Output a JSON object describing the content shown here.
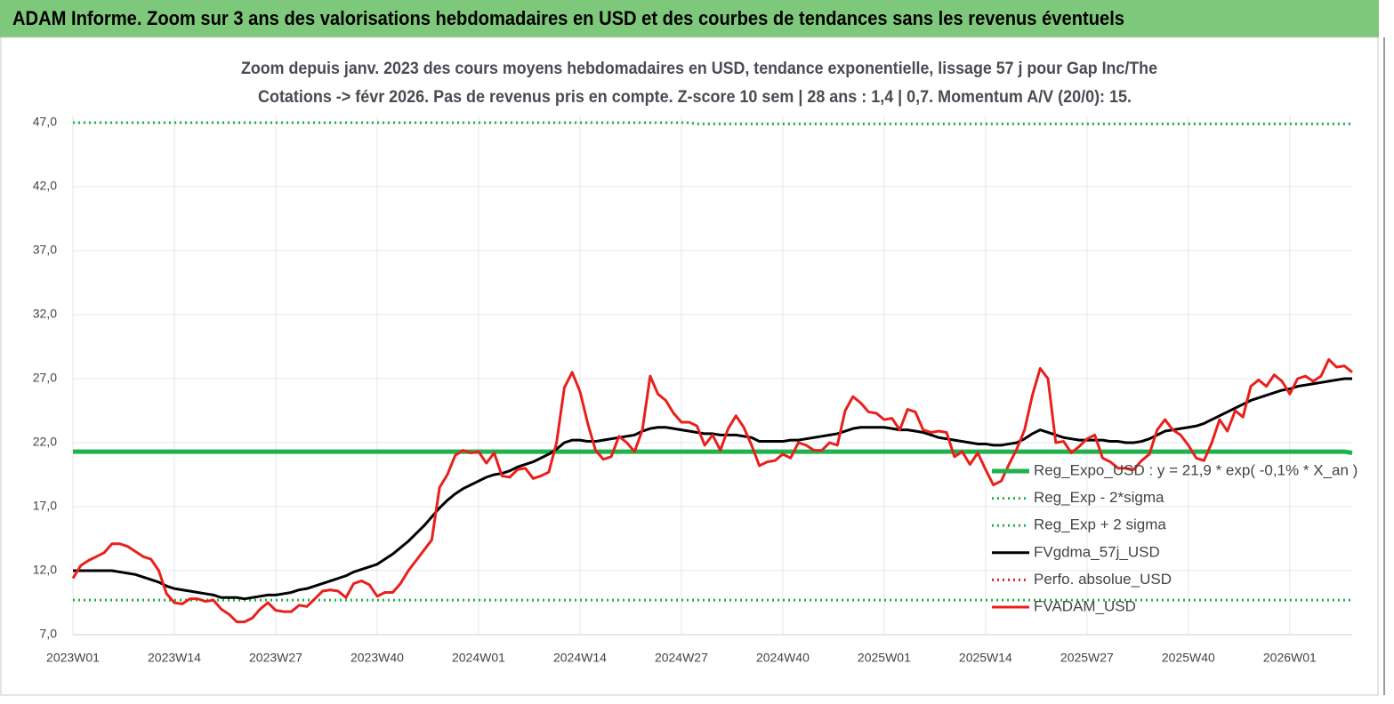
{
  "header": {
    "title": "ADAM Informe. Zoom sur 3 ans des valorisations hebdomadaires en USD et des courbes de tendances sans les revenus éventuels"
  },
  "chart_data": {
    "type": "line",
    "title": "Zoom depuis janv. 2023 des cours moyens hebdomadaires en USD, tendance exponentielle, lissage 57 j pour Gap Inc/The",
    "subtitle": "Cotations -> févr 2026.  Pas de revenus pris en compte. Z-score 10 sem  | 28 ans : 1,4  | 0,7. Momentum A/V (20/0): 15.",
    "categories": [
      "2023W01",
      null,
      null,
      null,
      null,
      null,
      null,
      null,
      null,
      null,
      null,
      null,
      null,
      "2023W14",
      null,
      null,
      null,
      null,
      null,
      null,
      null,
      null,
      null,
      null,
      null,
      null,
      "2023W27",
      null,
      null,
      null,
      null,
      null,
      null,
      null,
      null,
      null,
      null,
      null,
      null,
      "2023W40",
      null,
      null,
      null,
      null,
      null,
      null,
      null,
      null,
      null,
      null,
      null,
      null,
      "2024W01",
      null,
      null,
      null,
      null,
      null,
      null,
      null,
      null,
      null,
      null,
      null,
      null,
      "2024W14",
      null,
      null,
      null,
      null,
      null,
      null,
      null,
      null,
      null,
      null,
      null,
      null,
      "2024W27",
      null,
      null,
      null,
      null,
      null,
      null,
      null,
      null,
      null,
      null,
      null,
      null,
      "2024W40",
      null,
      null,
      null,
      null,
      null,
      null,
      null,
      null,
      null,
      null,
      null,
      null,
      "2025W01",
      null,
      null,
      null,
      null,
      null,
      null,
      null,
      null,
      null,
      null,
      null,
      null,
      "2025W14",
      null,
      null,
      null,
      null,
      null,
      null,
      null,
      null,
      null,
      null,
      null,
      null,
      "2025W27",
      null,
      null,
      null,
      null,
      null,
      null,
      null,
      null,
      null,
      null,
      null,
      null,
      "2025W40",
      null,
      null,
      null,
      null,
      null,
      null,
      null,
      null,
      null,
      null,
      null,
      null,
      "2026W01",
      null,
      null,
      null,
      null,
      null,
      null,
      null,
      null
    ],
    "series": [
      {
        "name": "Reg_Expo_USD : y = 21,9 * exp( -0,1% *  X_an )",
        "color": "#1fb14b",
        "style": "solid",
        "values": [
          21.3,
          21.3,
          21.3,
          21.3,
          21.3,
          21.3,
          21.3,
          21.3,
          21.3,
          21.3,
          21.3,
          21.3,
          21.3,
          21.3,
          21.3,
          21.3,
          21.3,
          21.3,
          21.3,
          21.3,
          21.3,
          21.3,
          21.3,
          21.3,
          21.3,
          21.3,
          21.3,
          21.3,
          21.3,
          21.3,
          21.3,
          21.3,
          21.3,
          21.3,
          21.3,
          21.3,
          21.3,
          21.3,
          21.3,
          21.3,
          21.3,
          21.3,
          21.3,
          21.3,
          21.3,
          21.3,
          21.3,
          21.3,
          21.3,
          21.3,
          21.3,
          21.3,
          21.3,
          21.3,
          21.3,
          21.3,
          21.3,
          21.3,
          21.3,
          21.3,
          21.3,
          21.3,
          21.3,
          21.3,
          21.3,
          21.3,
          21.3,
          21.3,
          21.3,
          21.3,
          21.3,
          21.3,
          21.3,
          21.3,
          21.3,
          21.3,
          21.3,
          21.3,
          21.3,
          21.3,
          21.3,
          21.3,
          21.3,
          21.3,
          21.3,
          21.3,
          21.3,
          21.3,
          21.3,
          21.3,
          21.3,
          21.3,
          21.3,
          21.3,
          21.3,
          21.3,
          21.3,
          21.3,
          21.3,
          21.3,
          21.3,
          21.3,
          21.3,
          21.3,
          21.3,
          21.3,
          21.3,
          21.3,
          21.3,
          21.3,
          21.3,
          21.3,
          21.3,
          21.3,
          21.3,
          21.3,
          21.3,
          21.3,
          21.3,
          21.3,
          21.3,
          21.3,
          21.3,
          21.3,
          21.3,
          21.3,
          21.3,
          21.3,
          21.3,
          21.3,
          21.3,
          21.3,
          21.3,
          21.3,
          21.3,
          21.3,
          21.3,
          21.3,
          21.3,
          21.3,
          21.3,
          21.3,
          21.3,
          21.3,
          21.3,
          21.3,
          21.3,
          21.3,
          21.3,
          21.3,
          21.3,
          21.3,
          21.3,
          21.3,
          21.3,
          21.3,
          21.3,
          21.3,
          21.3,
          21.3,
          21.3,
          21.3,
          21.3,
          21.3,
          21.2
        ]
      },
      {
        "name": "Reg_Exp - 2*sigma",
        "color": "#1fb14b",
        "style": "dotted",
        "values": [
          9.7,
          9.7,
          9.7,
          9.7,
          9.7,
          9.7,
          9.7,
          9.7,
          9.7,
          9.7,
          9.7,
          9.7,
          9.7,
          9.7,
          9.7,
          9.7,
          9.7,
          9.7,
          9.7,
          9.7,
          9.7,
          9.7,
          9.7,
          9.7,
          9.7,
          9.7,
          9.7,
          9.7,
          9.7,
          9.7,
          9.7,
          9.7,
          9.7,
          9.7,
          9.7,
          9.7,
          9.7,
          9.7,
          9.7,
          9.7,
          9.7,
          9.7,
          9.7,
          9.7,
          9.7,
          9.7,
          9.7,
          9.7,
          9.7,
          9.7,
          9.7,
          9.7,
          9.7,
          9.7,
          9.7,
          9.7,
          9.7,
          9.7,
          9.7,
          9.7,
          9.7,
          9.7,
          9.7,
          9.7,
          9.7,
          9.7,
          9.7,
          9.7,
          9.7,
          9.7,
          9.7,
          9.7,
          9.7,
          9.7,
          9.7,
          9.7,
          9.7,
          9.7,
          9.7,
          9.7,
          9.7,
          9.7,
          9.7,
          9.7,
          9.7,
          9.7,
          9.7,
          9.7,
          9.7,
          9.7,
          9.7,
          9.7,
          9.7,
          9.7,
          9.7,
          9.7,
          9.7,
          9.7,
          9.7,
          9.7,
          9.7,
          9.7,
          9.7,
          9.7,
          9.7,
          9.7,
          9.7,
          9.7,
          9.7,
          9.7,
          9.7,
          9.7,
          9.7,
          9.7,
          9.7,
          9.7,
          9.7,
          9.7,
          9.7,
          9.7,
          9.7,
          9.7,
          9.7,
          9.7,
          9.7,
          9.7,
          9.7,
          9.7,
          9.7,
          9.7,
          9.7,
          9.7,
          9.7,
          9.7,
          9.7,
          9.7,
          9.7,
          9.7,
          9.7,
          9.7,
          9.7,
          9.7,
          9.7,
          9.7,
          9.7,
          9.7,
          9.7,
          9.7,
          9.7,
          9.7,
          9.7,
          9.7,
          9.7,
          9.7,
          9.7,
          9.7,
          9.7,
          9.7,
          9.7,
          9.7,
          9.7,
          9.7,
          9.7,
          9.7,
          9.7
        ]
      },
      {
        "name": "Reg_Exp + 2 sigma",
        "color": "#1fb14b",
        "style": "dotted",
        "values": [
          47,
          47,
          47,
          47,
          47,
          47,
          47,
          47,
          47,
          47,
          47,
          47,
          47,
          47,
          47,
          47,
          47,
          47,
          47,
          47,
          47,
          47,
          47,
          47,
          47,
          47,
          47,
          47,
          47,
          47,
          47,
          47,
          47,
          47,
          47,
          47,
          47,
          47,
          47,
          47,
          47,
          47,
          47,
          47,
          47,
          47,
          47,
          47,
          47,
          47,
          47,
          47,
          47,
          47,
          47,
          47,
          47,
          47,
          47,
          47,
          47,
          47,
          47,
          47,
          47,
          47,
          47,
          47,
          47,
          47,
          47,
          47,
          47,
          47,
          47,
          47,
          47,
          47,
          47,
          47,
          46.9,
          46.9,
          46.9,
          46.9,
          46.9,
          46.9,
          46.9,
          46.9,
          46.9,
          46.9,
          46.9,
          46.9,
          46.9,
          46.9,
          46.9,
          46.9,
          46.9,
          46.9,
          46.9,
          46.9,
          46.9,
          46.9,
          46.9,
          46.9,
          46.9,
          46.9,
          46.9,
          46.9,
          46.9,
          46.9,
          46.9,
          46.9,
          46.9,
          46.9,
          46.9,
          46.9,
          46.9,
          46.9,
          46.9,
          46.9,
          46.9,
          46.9,
          46.9,
          46.9,
          46.9,
          46.9,
          46.9,
          46.9,
          46.9,
          46.9,
          46.9,
          46.9,
          46.9,
          46.9,
          46.9,
          46.9,
          46.9,
          46.9,
          46.9,
          46.9,
          46.9,
          46.9,
          46.9,
          46.9,
          46.9,
          46.9,
          46.9,
          46.9,
          46.9,
          46.9,
          46.9,
          46.9,
          46.9,
          46.9,
          46.9,
          46.9,
          46.9,
          46.9,
          46.9,
          46.9,
          46.9,
          46.9,
          46.9,
          46.9,
          46.9
        ]
      },
      {
        "name": "FVgdma_57j_USD",
        "color": "#000000",
        "style": "solid",
        "values": [
          12.0,
          12.0,
          12.0,
          12.0,
          12.0,
          12.0,
          11.9,
          11.8,
          11.7,
          11.5,
          11.3,
          11.1,
          10.8,
          10.6,
          10.5,
          10.4,
          10.3,
          10.2,
          10.1,
          9.9,
          9.9,
          9.9,
          9.8,
          9.9,
          10.0,
          10.1,
          10.1,
          10.2,
          10.3,
          10.5,
          10.6,
          10.8,
          11.0,
          11.2,
          11.4,
          11.6,
          11.9,
          12.1,
          12.3,
          12.5,
          12.9,
          13.3,
          13.8,
          14.3,
          14.9,
          15.5,
          16.2,
          16.9,
          17.5,
          18.0,
          18.4,
          18.7,
          19.0,
          19.3,
          19.5,
          19.6,
          19.8,
          20.1,
          20.3,
          20.5,
          20.8,
          21.1,
          21.5,
          22.0,
          22.2,
          22.2,
          22.1,
          22.1,
          22.2,
          22.3,
          22.4,
          22.5,
          22.6,
          22.9,
          23.1,
          23.2,
          23.2,
          23.1,
          23.0,
          22.9,
          22.8,
          22.7,
          22.7,
          22.6,
          22.6,
          22.6,
          22.5,
          22.4,
          22.1,
          22.1,
          22.1,
          22.1,
          22.2,
          22.2,
          22.3,
          22.4,
          22.5,
          22.6,
          22.7,
          22.9,
          23.1,
          23.2,
          23.2,
          23.2,
          23.2,
          23.1,
          23.0,
          23.0,
          22.9,
          22.8,
          22.6,
          22.4,
          22.3,
          22.2,
          22.1,
          22.0,
          21.9,
          21.9,
          21.8,
          21.8,
          21.9,
          22.0,
          22.3,
          22.7,
          23.0,
          22.8,
          22.6,
          22.4,
          22.3,
          22.2,
          22.2,
          22.2,
          22.2,
          22.1,
          22.1,
          22.0,
          22.0,
          22.1,
          22.3,
          22.6,
          22.9,
          23.0,
          23.1,
          23.2,
          23.3,
          23.5,
          23.8,
          24.1,
          24.4,
          24.7,
          25.0,
          25.3,
          25.5,
          25.7,
          25.9,
          26.1,
          26.2,
          26.4,
          26.5,
          26.6,
          26.7,
          26.8,
          26.9,
          27.0,
          27.0
        ]
      },
      {
        "name": "Perfo. absolue_USD",
        "color": "#e0201c",
        "style": "dotted",
        "values": [
          null,
          null,
          null,
          null,
          null,
          null,
          null,
          null,
          null,
          null,
          null,
          null,
          null,
          null,
          null,
          null,
          null,
          null,
          null,
          null,
          null,
          null,
          null,
          null,
          null,
          null,
          null,
          null,
          null,
          null,
          null,
          null,
          null,
          null,
          null,
          null,
          null,
          null,
          null,
          null,
          null,
          null,
          null,
          null,
          null,
          null,
          null,
          null,
          null,
          null,
          null,
          null,
          null,
          null,
          null,
          null,
          null,
          null,
          null,
          null,
          null,
          null,
          null,
          null,
          null,
          null,
          null,
          null,
          null,
          null,
          null,
          null,
          null,
          null,
          null,
          null,
          null,
          null,
          null,
          null,
          null,
          null,
          null,
          null,
          null,
          null,
          null,
          null,
          null,
          null,
          null,
          null,
          null,
          null,
          null,
          null,
          null,
          null,
          null,
          null,
          null,
          null,
          null,
          null,
          null,
          null,
          null,
          null,
          null,
          null,
          null,
          null,
          null,
          null,
          null,
          null,
          null,
          null,
          null,
          null,
          null,
          null,
          null,
          null,
          null,
          null,
          null,
          null,
          null,
          null,
          null,
          null,
          null,
          null,
          null,
          null,
          null,
          null,
          null,
          null,
          null,
          null,
          null,
          null,
          null,
          null,
          null,
          null,
          null,
          null,
          null,
          null,
          null,
          null,
          null,
          null,
          null,
          null,
          null,
          null,
          null,
          null,
          null,
          null,
          null
        ]
      },
      {
        "name": "FVADAM_USD",
        "color": "#e8201c",
        "style": "solid",
        "values": [
          11.4,
          12.4,
          12.8,
          13.1,
          13.4,
          14.1,
          14.1,
          13.9,
          13.5,
          13.1,
          12.9,
          12.0,
          10.2,
          9.5,
          9.4,
          9.8,
          9.8,
          9.6,
          9.7,
          9.0,
          8.6,
          8.0,
          8.0,
          8.3,
          9.0,
          9.5,
          8.9,
          8.8,
          8.8,
          9.3,
          9.2,
          9.8,
          10.4,
          10.5,
          10.4,
          9.9,
          11.0,
          11.2,
          10.9,
          10.0,
          10.3,
          10.3,
          11.0,
          12.0,
          12.8,
          13.6,
          14.4,
          18.5,
          19.5,
          21.0,
          21.4,
          21.2,
          21.3,
          20.4,
          21.2,
          19.4,
          19.3,
          19.9,
          20.0,
          19.2,
          19.4,
          19.7,
          22.0,
          26.3,
          27.5,
          26.0,
          23.5,
          21.4,
          20.7,
          20.9,
          22.5,
          22.0,
          21.3,
          23.0,
          27.2,
          25.8,
          25.3,
          24.3,
          23.6,
          23.6,
          23.3,
          21.8,
          22.6,
          21.4,
          23.1,
          24.1,
          23.2,
          21.8,
          20.2,
          20.5,
          20.6,
          21.1,
          20.8,
          22.0,
          21.8,
          21.4,
          21.4,
          22.0,
          21.8,
          24.5,
          25.6,
          25.1,
          24.4,
          24.3,
          23.8,
          23.9,
          23.0,
          24.6,
          24.4,
          23.0,
          22.8,
          22.9,
          22.8,
          20.9,
          21.3,
          20.3,
          21.2,
          19.9,
          18.7,
          19.0,
          20.3,
          21.5,
          23.0,
          25.7,
          27.8,
          27.0,
          22.0,
          22.1,
          21.2,
          21.7,
          22.3,
          22.6,
          20.8,
          20.5,
          20.0,
          20.0,
          19.9,
          20.6,
          21.1,
          23.0,
          23.8,
          23.0,
          22.6,
          21.8,
          20.8,
          20.6,
          22.0,
          23.8,
          22.9,
          24.5,
          24.0,
          26.4,
          26.9,
          26.4,
          27.3,
          26.8,
          25.8,
          27.0,
          27.2,
          26.8,
          27.2,
          28.5,
          27.9,
          28.0,
          27.5
        ]
      }
    ],
    "ylim": [
      7,
      47
    ],
    "yticks": [
      {
        "value": 7,
        "label": "7,0"
      },
      {
        "value": 12,
        "label": "12,0"
      },
      {
        "value": 17,
        "label": "17,0"
      },
      {
        "value": 22,
        "label": "22,0"
      },
      {
        "value": 27,
        "label": "27,0"
      },
      {
        "value": 32,
        "label": "32,0"
      },
      {
        "value": 37,
        "label": "37,0"
      },
      {
        "value": 42,
        "label": "42,0"
      },
      {
        "value": 47,
        "label": "47,0"
      }
    ],
    "grid": true,
    "legend": "lower right"
  }
}
